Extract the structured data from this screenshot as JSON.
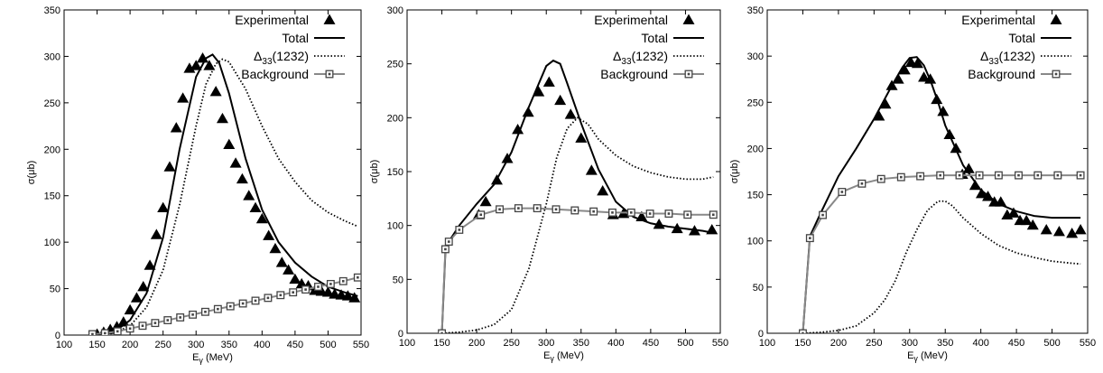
{
  "chart_data": [
    {
      "type": "line",
      "xlabel": "E_γ (MeV)",
      "ylabel": "σ(μb)",
      "xlim": [
        100,
        550
      ],
      "ylim": [
        0,
        350
      ],
      "xticks": [
        "100",
        "150",
        "200",
        "250",
        "300",
        "350",
        "400",
        "450",
        "500",
        "550"
      ],
      "yticks": [
        "0",
        "50",
        "100",
        "150",
        "200",
        "250",
        "300",
        "350"
      ],
      "grid": false,
      "legend_position": "top-right",
      "legend": [
        "Experimental",
        "Total",
        "Δ33(1232)",
        "Background"
      ],
      "series": [
        {
          "name": "Experimental",
          "style": "triangles",
          "x": [
            150,
            160,
            170,
            180,
            190,
            200,
            210,
            220,
            230,
            240,
            250,
            260,
            270,
            280,
            290,
            300,
            310,
            320,
            330,
            340,
            350,
            360,
            370,
            380,
            390,
            400,
            410,
            420,
            430,
            440,
            450,
            460,
            470,
            480,
            490,
            500,
            510,
            520,
            530,
            540
          ],
          "y": [
            1,
            3,
            6,
            9,
            14,
            27,
            40,
            52,
            75,
            108,
            137,
            181,
            223,
            255,
            287,
            290,
            298,
            290,
            262,
            233,
            205,
            185,
            168,
            150,
            137,
            125,
            107,
            93,
            78,
            70,
            60,
            55,
            53,
            48,
            47,
            46,
            44,
            43,
            42,
            40
          ]
        },
        {
          "name": "Total",
          "style": "solid",
          "x": [
            150,
            175,
            200,
            225,
            250,
            275,
            300,
            315,
            325,
            335,
            350,
            375,
            400,
            425,
            450,
            475,
            500,
            525,
            545
          ],
          "y": [
            0,
            3,
            16,
            45,
            105,
            200,
            278,
            298,
            302,
            293,
            260,
            190,
            135,
            100,
            78,
            63,
            52,
            46,
            42
          ]
        },
        {
          "name": "Δ33(1232)",
          "style": "dotted",
          "x": [
            150,
            175,
            200,
            225,
            250,
            275,
            300,
            315,
            330,
            340,
            350,
            375,
            400,
            425,
            450,
            475,
            500,
            525,
            545
          ],
          "y": [
            0,
            2,
            10,
            30,
            70,
            140,
            225,
            270,
            292,
            297,
            294,
            265,
            225,
            190,
            165,
            145,
            132,
            123,
            117
          ]
        },
        {
          "name": "Background",
          "style": "squares",
          "x": [
            143,
            162,
            181,
            200,
            219,
            238,
            257,
            276,
            295,
            314,
            333,
            352,
            371,
            390,
            409,
            428,
            447,
            466,
            485,
            504,
            523,
            545
          ],
          "y": [
            1,
            2,
            4,
            7,
            10,
            13,
            16,
            19,
            22,
            25,
            28,
            31,
            34,
            37,
            40,
            43,
            46,
            49,
            52,
            55,
            58,
            62
          ]
        }
      ]
    },
    {
      "type": "line",
      "xlabel": "E_γ (MeV)",
      "ylabel": "σ(μb)",
      "xlim": [
        100,
        550
      ],
      "ylim": [
        0,
        300
      ],
      "xticks": [
        "100",
        "150",
        "200",
        "250",
        "300",
        "350",
        "400",
        "450",
        "500",
        "550"
      ],
      "yticks": [
        "0",
        "50",
        "100",
        "150",
        "200",
        "250",
        "300"
      ],
      "grid": false,
      "legend_position": "top-right",
      "legend": [
        "Experimental",
        "Total",
        "Δ33(1232)",
        "Background"
      ],
      "series": [
        {
          "name": "Experimental",
          "style": "triangles",
          "x": [
            203,
            213,
            229,
            244,
            259,
            274,
            289,
            304,
            320,
            335,
            350,
            365,
            381,
            396,
            411,
            437,
            462,
            488,
            513,
            538
          ],
          "y": [
            110,
            122,
            142,
            162,
            189,
            205,
            224,
            233,
            216,
            203,
            181,
            151,
            132,
            110,
            111,
            108,
            101,
            97,
            95,
            96
          ]
        },
        {
          "name": "Total",
          "style": "solid",
          "x": [
            150,
            155,
            160,
            175,
            200,
            225,
            250,
            275,
            300,
            310,
            320,
            330,
            350,
            375,
            400,
            425,
            450,
            475,
            500,
            525,
            540
          ],
          "y": [
            0,
            75,
            85,
            100,
            120,
            138,
            168,
            210,
            248,
            253,
            250,
            232,
            195,
            152,
            122,
            108,
            102,
            99,
            97,
            95,
            93
          ]
        },
        {
          "name": "Δ33(1232)",
          "style": "dotted",
          "x": [
            150,
            175,
            200,
            225,
            250,
            275,
            300,
            315,
            330,
            345,
            360,
            375,
            400,
            425,
            450,
            475,
            500,
            525,
            540
          ],
          "y": [
            0,
            1,
            3,
            8,
            22,
            60,
            120,
            163,
            190,
            200,
            194,
            180,
            165,
            155,
            149,
            145,
            143,
            143,
            145
          ]
        },
        {
          "name": "Background",
          "style": "squares",
          "x": [
            150,
            155,
            160,
            175,
            206,
            233,
            260,
            287,
            314,
            341,
            368,
            395,
            422,
            449,
            476,
            503,
            540
          ],
          "y": [
            0,
            78,
            85,
            96,
            110,
            115,
            116,
            116,
            115,
            114,
            113,
            112,
            112,
            111,
            111,
            110,
            110
          ]
        }
      ]
    },
    {
      "type": "line",
      "xlabel": "E_γ (MeV)",
      "ylabel": "σ(μb)",
      "xlim": [
        100,
        550
      ],
      "ylim": [
        0,
        350
      ],
      "xticks": [
        "100",
        "150",
        "200",
        "250",
        "300",
        "350",
        "400",
        "450",
        "500",
        "550"
      ],
      "yticks": [
        "0",
        "50",
        "100",
        "150",
        "200",
        "250",
        "300",
        "350"
      ],
      "grid": false,
      "legend_position": "top-right",
      "legend": [
        "Experimental",
        "Total",
        "Δ33(1232)",
        "Background"
      ],
      "series": [
        {
          "name": "Experimental",
          "style": "triangles",
          "x": [
            257,
            266,
            275,
            284,
            293,
            302,
            311,
            320,
            329,
            338,
            347,
            356,
            365,
            374,
            383,
            392,
            401,
            410,
            419,
            428,
            437,
            446,
            455,
            464,
            473,
            492,
            510,
            528,
            540
          ],
          "y": [
            235,
            248,
            268,
            275,
            285,
            293,
            292,
            277,
            275,
            253,
            240,
            215,
            200,
            172,
            178,
            160,
            151,
            148,
            142,
            142,
            128,
            130,
            122,
            122,
            117,
            112,
            110,
            108,
            112
          ]
        },
        {
          "name": "Total",
          "style": "solid",
          "x": [
            150,
            160,
            175,
            200,
            225,
            250,
            275,
            290,
            300,
            310,
            320,
            330,
            340,
            350,
            375,
            400,
            425,
            450,
            475,
            500,
            525,
            540
          ],
          "y": [
            0,
            105,
            130,
            170,
            200,
            232,
            268,
            288,
            298,
            299,
            290,
            272,
            250,
            225,
            182,
            155,
            140,
            132,
            127,
            125,
            125,
            125
          ]
        },
        {
          "name": "Δ33(1232)",
          "style": "dotted",
          "x": [
            150,
            175,
            200,
            225,
            250,
            265,
            280,
            295,
            310,
            325,
            340,
            350,
            360,
            375,
            400,
            425,
            450,
            475,
            500,
            525,
            540
          ],
          "y": [
            0,
            1,
            3,
            8,
            22,
            36,
            57,
            87,
            112,
            133,
            143,
            143,
            138,
            125,
            108,
            95,
            87,
            82,
            78,
            76,
            75
          ]
        },
        {
          "name": "Background",
          "style": "squares",
          "x": [
            150,
            160,
            178,
            205,
            233,
            260,
            288,
            315,
            343,
            370,
            398,
            425,
            453,
            480,
            508,
            540
          ],
          "y": [
            0,
            103,
            128,
            153,
            162,
            167,
            169,
            170,
            171,
            171,
            171,
            171,
            171,
            171,
            171,
            171
          ]
        }
      ]
    }
  ]
}
